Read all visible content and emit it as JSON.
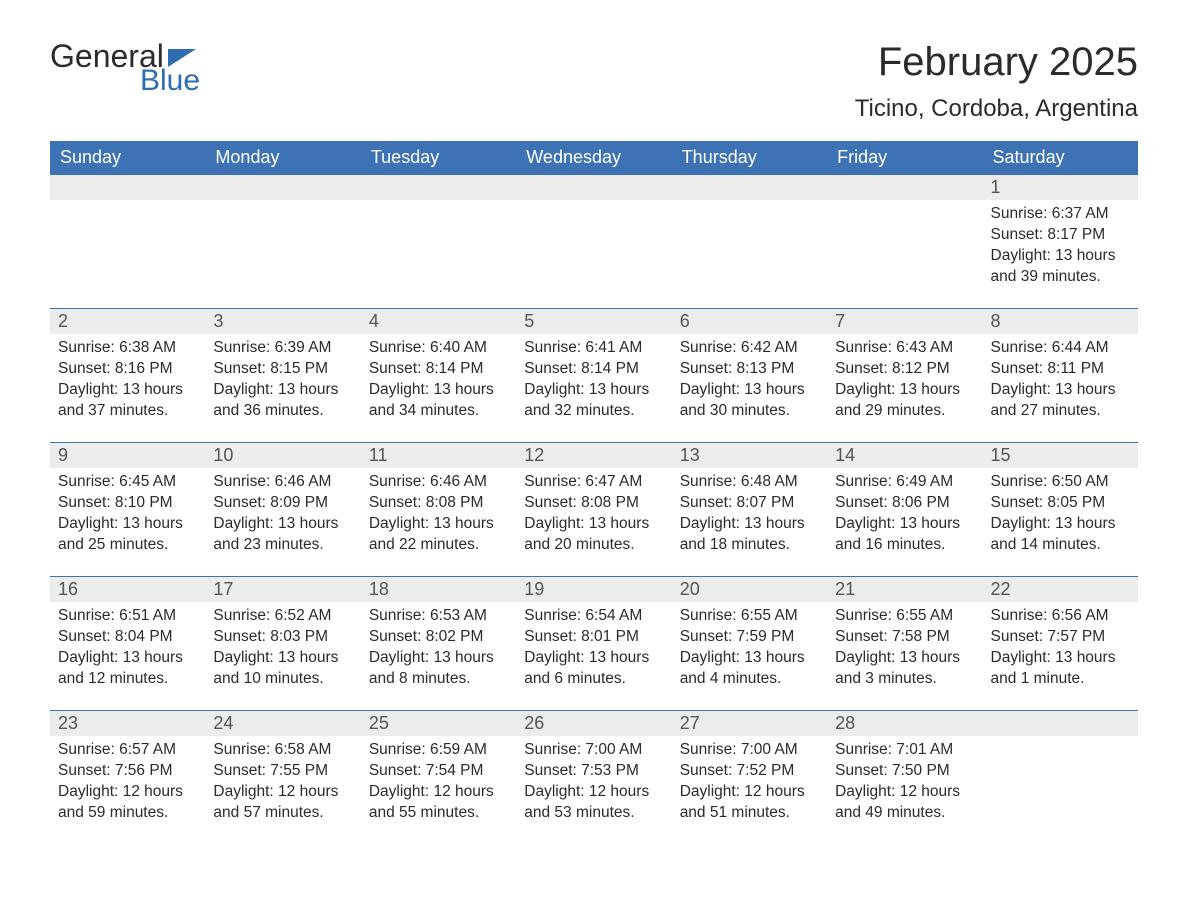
{
  "brand": {
    "general": "General",
    "blue": "Blue",
    "blue_color": "#2f6db3",
    "flag_color": "#2f6db3"
  },
  "title": "February 2025",
  "location": "Ticino, Cordoba, Argentina",
  "colors": {
    "header_bg": "#3d73b4",
    "header_text": "#ffffff",
    "daynum_bg": "#ececec",
    "row_border": "#3d73b4",
    "body_text": "#2b2b2b"
  },
  "weekdays": [
    "Sunday",
    "Monday",
    "Tuesday",
    "Wednesday",
    "Thursday",
    "Friday",
    "Saturday"
  ],
  "weeks": [
    [
      null,
      null,
      null,
      null,
      null,
      null,
      {
        "n": "1",
        "sunrise": "Sunrise: 6:37 AM",
        "sunset": "Sunset: 8:17 PM",
        "day": "Daylight: 13 hours and 39 minutes."
      }
    ],
    [
      {
        "n": "2",
        "sunrise": "Sunrise: 6:38 AM",
        "sunset": "Sunset: 8:16 PM",
        "day": "Daylight: 13 hours and 37 minutes."
      },
      {
        "n": "3",
        "sunrise": "Sunrise: 6:39 AM",
        "sunset": "Sunset: 8:15 PM",
        "day": "Daylight: 13 hours and 36 minutes."
      },
      {
        "n": "4",
        "sunrise": "Sunrise: 6:40 AM",
        "sunset": "Sunset: 8:14 PM",
        "day": "Daylight: 13 hours and 34 minutes."
      },
      {
        "n": "5",
        "sunrise": "Sunrise: 6:41 AM",
        "sunset": "Sunset: 8:14 PM",
        "day": "Daylight: 13 hours and 32 minutes."
      },
      {
        "n": "6",
        "sunrise": "Sunrise: 6:42 AM",
        "sunset": "Sunset: 8:13 PM",
        "day": "Daylight: 13 hours and 30 minutes."
      },
      {
        "n": "7",
        "sunrise": "Sunrise: 6:43 AM",
        "sunset": "Sunset: 8:12 PM",
        "day": "Daylight: 13 hours and 29 minutes."
      },
      {
        "n": "8",
        "sunrise": "Sunrise: 6:44 AM",
        "sunset": "Sunset: 8:11 PM",
        "day": "Daylight: 13 hours and 27 minutes."
      }
    ],
    [
      {
        "n": "9",
        "sunrise": "Sunrise: 6:45 AM",
        "sunset": "Sunset: 8:10 PM",
        "day": "Daylight: 13 hours and 25 minutes."
      },
      {
        "n": "10",
        "sunrise": "Sunrise: 6:46 AM",
        "sunset": "Sunset: 8:09 PM",
        "day": "Daylight: 13 hours and 23 minutes."
      },
      {
        "n": "11",
        "sunrise": "Sunrise: 6:46 AM",
        "sunset": "Sunset: 8:08 PM",
        "day": "Daylight: 13 hours and 22 minutes."
      },
      {
        "n": "12",
        "sunrise": "Sunrise: 6:47 AM",
        "sunset": "Sunset: 8:08 PM",
        "day": "Daylight: 13 hours and 20 minutes."
      },
      {
        "n": "13",
        "sunrise": "Sunrise: 6:48 AM",
        "sunset": "Sunset: 8:07 PM",
        "day": "Daylight: 13 hours and 18 minutes."
      },
      {
        "n": "14",
        "sunrise": "Sunrise: 6:49 AM",
        "sunset": "Sunset: 8:06 PM",
        "day": "Daylight: 13 hours and 16 minutes."
      },
      {
        "n": "15",
        "sunrise": "Sunrise: 6:50 AM",
        "sunset": "Sunset: 8:05 PM",
        "day": "Daylight: 13 hours and 14 minutes."
      }
    ],
    [
      {
        "n": "16",
        "sunrise": "Sunrise: 6:51 AM",
        "sunset": "Sunset: 8:04 PM",
        "day": "Daylight: 13 hours and 12 minutes."
      },
      {
        "n": "17",
        "sunrise": "Sunrise: 6:52 AM",
        "sunset": "Sunset: 8:03 PM",
        "day": "Daylight: 13 hours and 10 minutes."
      },
      {
        "n": "18",
        "sunrise": "Sunrise: 6:53 AM",
        "sunset": "Sunset: 8:02 PM",
        "day": "Daylight: 13 hours and 8 minutes."
      },
      {
        "n": "19",
        "sunrise": "Sunrise: 6:54 AM",
        "sunset": "Sunset: 8:01 PM",
        "day": "Daylight: 13 hours and 6 minutes."
      },
      {
        "n": "20",
        "sunrise": "Sunrise: 6:55 AM",
        "sunset": "Sunset: 7:59 PM",
        "day": "Daylight: 13 hours and 4 minutes."
      },
      {
        "n": "21",
        "sunrise": "Sunrise: 6:55 AM",
        "sunset": "Sunset: 7:58 PM",
        "day": "Daylight: 13 hours and 3 minutes."
      },
      {
        "n": "22",
        "sunrise": "Sunrise: 6:56 AM",
        "sunset": "Sunset: 7:57 PM",
        "day": "Daylight: 13 hours and 1 minute."
      }
    ],
    [
      {
        "n": "23",
        "sunrise": "Sunrise: 6:57 AM",
        "sunset": "Sunset: 7:56 PM",
        "day": "Daylight: 12 hours and 59 minutes."
      },
      {
        "n": "24",
        "sunrise": "Sunrise: 6:58 AM",
        "sunset": "Sunset: 7:55 PM",
        "day": "Daylight: 12 hours and 57 minutes."
      },
      {
        "n": "25",
        "sunrise": "Sunrise: 6:59 AM",
        "sunset": "Sunset: 7:54 PM",
        "day": "Daylight: 12 hours and 55 minutes."
      },
      {
        "n": "26",
        "sunrise": "Sunrise: 7:00 AM",
        "sunset": "Sunset: 7:53 PM",
        "day": "Daylight: 12 hours and 53 minutes."
      },
      {
        "n": "27",
        "sunrise": "Sunrise: 7:00 AM",
        "sunset": "Sunset: 7:52 PM",
        "day": "Daylight: 12 hours and 51 minutes."
      },
      {
        "n": "28",
        "sunrise": "Sunrise: 7:01 AM",
        "sunset": "Sunset: 7:50 PM",
        "day": "Daylight: 12 hours and 49 minutes."
      },
      null
    ]
  ]
}
